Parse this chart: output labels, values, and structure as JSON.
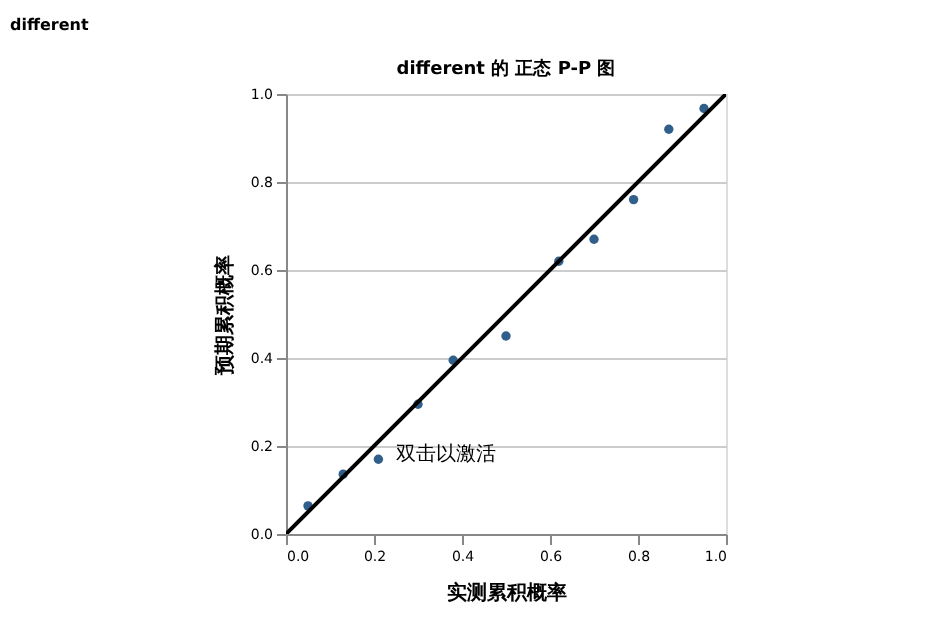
{
  "chart_data": {
    "type": "scatter",
    "title": "different 的 正态 P-P 图",
    "xlabel": "实测累积概率",
    "ylabel": "预期累积概率",
    "annotations": [
      "different",
      "双击以激活"
    ],
    "xlim": [
      0,
      1
    ],
    "ylim": [
      0,
      1
    ],
    "xticks": [
      {
        "value": 0,
        "label": "0.0"
      },
      0.2,
      0.4,
      0.6,
      0.8,
      {
        "value": 1,
        "label": "1.0"
      }
    ],
    "yticks": [
      {
        "value": 0,
        "label": "0.0"
      },
      0.2,
      0.4,
      0.6,
      0.8,
      {
        "value": 1,
        "label": "1.0"
      }
    ],
    "grid": "y",
    "series": [
      {
        "marker": "circle",
        "color": "#2f5f8a",
        "x": [
          0.05,
          0.13,
          0.21,
          0.3,
          0.38,
          0.5,
          0.62,
          0.7,
          0.79,
          0.87,
          0.95
        ],
        "values": [
          0.064,
          0.136,
          0.17,
          0.295,
          0.395,
          0.45,
          0.62,
          0.67,
          0.76,
          0.92,
          0.967
        ]
      },
      {
        "type": "line",
        "color": "#000000",
        "line_style": "solid",
        "x": [
          0,
          1
        ],
        "values": [
          0,
          1
        ]
      }
    ]
  }
}
